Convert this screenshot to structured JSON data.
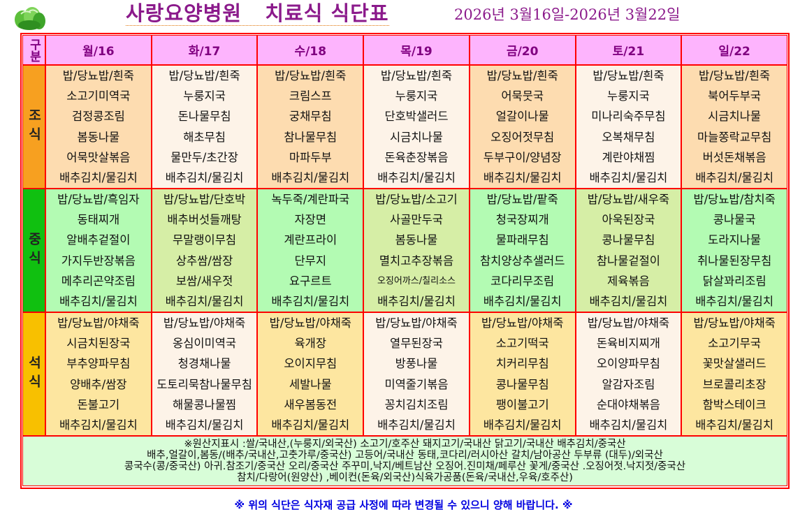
{
  "header": {
    "title": "사랑요양병원   치료식 식단표",
    "dates": "2026년 3월16일-2026년 3월22일"
  },
  "table": {
    "corner_label": "구분",
    "days": [
      "월/16",
      "화/17",
      "수/18",
      "목/19",
      "금/20",
      "토/21",
      "일/22"
    ],
    "meals": [
      {
        "label": "조식",
        "key": "breakfast",
        "menus": [
          [
            "밥/당뇨밥/흰죽",
            "소고기미역국",
            "검정콩조림",
            "봄동나물",
            "어묵맛살볶음",
            "배추김치/물김치"
          ],
          [
            "밥/당뇨밥/흰죽",
            "누룽지국",
            "돈나물무침",
            "해초무침",
            "물만두/초간장",
            "배추김치/물김치"
          ],
          [
            "밥/당뇨밥/흰죽",
            "크림스프",
            "궁채무침",
            "참나물무침",
            "마파두부",
            "배추김치/물김치"
          ],
          [
            "밥/당뇨밥/흰죽",
            "누룽지국",
            "단호박샐러드",
            "시금치나물",
            "돈육춘장볶음",
            "배추김치/물김치"
          ],
          [
            "밥/당뇨밥/흰죽",
            "어묵뭇국",
            "얼갈이나물",
            "오징어젓무침",
            "두부구이/양념장",
            "배추김치/물김치"
          ],
          [
            "밥/당뇨밥/흰죽",
            "누룽지국",
            "미나리숙주무침",
            "오복채무침",
            "계란야채찜",
            "배추김치/물김치"
          ],
          [
            "밥/당뇨밥/흰죽",
            "북어두부국",
            "시금치나물",
            "마늘쫑락교무침",
            "버섯돈채볶음",
            "배추김치/물김치"
          ]
        ]
      },
      {
        "label": "중식",
        "key": "lunch",
        "menus": [
          [
            "밥/당뇨밥/흑임자",
            "동태찌개",
            "알배추겉절이",
            "가지두반장볶음",
            "메추리곤약조림",
            "배추김치/물김치"
          ],
          [
            "밥/당뇨밥/단호박",
            "배추버섯들깨탕",
            "무말랭이무침",
            "상추쌈/쌈장",
            "보쌈/새우젓",
            "배추김치/물김치"
          ],
          [
            "녹두죽/계란파국",
            "자장면",
            "계란프라이",
            "단무지",
            "요구르트",
            "배추김치/물김치"
          ],
          [
            "밥/당뇨밥/소고기",
            "사골만두국",
            "봄동나물",
            "멸치고추장볶음",
            "오징어까스/칠리소스",
            "배추김치/물김치"
          ],
          [
            "밥/당뇨밥/팥죽",
            "청국장찌개",
            "물파래무침",
            "참치양상추샐러드",
            "코다리무조림",
            "배추김치/물김치"
          ],
          [
            "밥/당뇨밥/새우죽",
            "아욱된장국",
            "콩나물무침",
            "참나물겉절이",
            "제육볶음",
            "배추김치/물김치"
          ],
          [
            "밥/당뇨밥/참치죽",
            "콩나물국",
            "도라지나물",
            "취나물된장무침",
            "닭살꽈리조림",
            "배추김치/물김치"
          ]
        ]
      },
      {
        "label": "석식",
        "key": "dinner",
        "menus": [
          [
            "밥/당뇨밥/야채죽",
            "시금치된장국",
            "부추양파무침",
            "양배추/쌈장",
            "돈불고기",
            "배추김치/물김치"
          ],
          [
            "밥/당뇨밥/야채죽",
            "옹심이미역국",
            "청경채나물",
            "도토리묵참나물무침",
            "해물콩나물찜",
            "배추김치/물김치"
          ],
          [
            "밥/당뇨밥/야채죽",
            "육개장",
            "오이지무침",
            "세발나물",
            "새우봄동전",
            "배추김치/물김치"
          ],
          [
            "밥/당뇨밥/야채죽",
            "열무된장국",
            "방풍나물",
            "미역줄기볶음",
            "꽁치김치조림",
            "배추김치/물김치"
          ],
          [
            "밥/당뇨밥/야채죽",
            "소고기떡국",
            "치커리무침",
            "콩나물무침",
            "팽이불고기",
            "배추김치/물김치"
          ],
          [
            "밥/당뇨밥/야채죽",
            "돈육비지찌개",
            "오이양파무침",
            "알감자조림",
            "순대야채볶음",
            "배추김치/물김치"
          ],
          [
            "밥/당뇨밥/야채죽",
            "소고기무국",
            "꽃맛살샐러드",
            "브로콜리초장",
            "함박스테이크",
            "배추김치/물김치"
          ]
        ]
      }
    ],
    "origin_lines": [
      "※원산지표시 :쌀/국내산,(누룽지/외국산) 소고기/호주산  돼지고기/국내산 닭고기/국내산 배추김치/중국산",
      "배추,얼갈이,봄동/(배추/국내산,고춧가루/중국산) 고등어/국내산  동태,코다리/러시아산  갈치/남아공산  두부류 (대두)/외국산",
      "콩국수(콩/중국산)  아귀.참조기/중국산  오리/중국산 주꾸미,낙지/베트남산 오징어.진미채/페루산  꽃게/중국산  .오징어젓.낙지젓/중국산",
      "참치/다랑어(원양산)  ,베이컨(돈육/외국산)식육가공품(돈육/국내산,우육/호주산)"
    ]
  },
  "notice": "※ 위의 식단은 식자재 공급 사정에 따라 변경될 수 있으니 양해 바랍니다. ※",
  "colors": {
    "border": "#ff0000",
    "header_bg": "#fdb4fd",
    "title": "#8b1a8b",
    "breakfast_label": "#f7a020",
    "lunch_label": "#10c010",
    "dinner_label": "#f8c000",
    "notice": "#0000e0"
  }
}
